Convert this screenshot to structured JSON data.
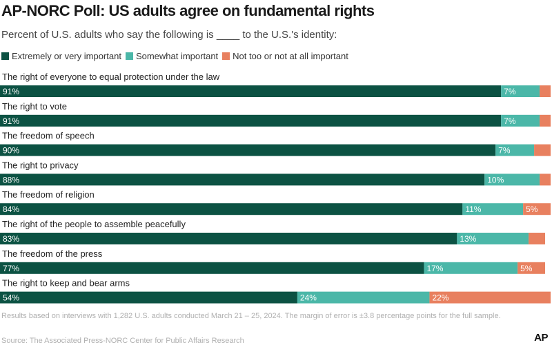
{
  "header": {
    "title": "AP-NORC Poll: US adults agree on fundamental rights",
    "subtitle": "Percent of U.S. adults who say the following is ____ to the U.S.'s identity:"
  },
  "colors": {
    "extremely": "#0c5243",
    "somewhat": "#4bb7a8",
    "not": "#e8805f"
  },
  "chart_data": {
    "type": "bar",
    "orientation": "horizontal",
    "stacked": true,
    "legend_position": "top-left",
    "grid": false,
    "xlim": [
      0,
      100
    ],
    "categories": [
      "The right of everyone to equal protection under the law",
      "The right to vote",
      "The freedom of speech",
      "The right to privacy",
      "The freedom of religion",
      "The right of the people to assemble peacefully",
      "The freedom of the press",
      "The right to keep and bear arms"
    ],
    "series": [
      {
        "name": "Extremely or very important",
        "values": [
          91,
          91,
          90,
          88,
          84,
          83,
          77,
          54
        ],
        "labels": [
          "91%",
          "91%",
          "90%",
          "88%",
          "84%",
          "83%",
          "77%",
          "54%"
        ]
      },
      {
        "name": "Somewhat important",
        "values": [
          7,
          7,
          7,
          10,
          11,
          13,
          17,
          24
        ],
        "labels": [
          "7%",
          "7%",
          "7%",
          "10%",
          "11%",
          "13%",
          "17%",
          "24%"
        ]
      },
      {
        "name": "Not too or not at all important",
        "values": [
          2,
          2,
          3,
          2,
          5,
          3,
          5,
          22
        ],
        "labels": [
          "",
          "",
          "",
          "",
          "5%",
          "",
          "5%",
          "22%"
        ]
      }
    ]
  },
  "footer": {
    "note": "Results based on interviews with 1,282 U.S. adults conducted March 21 – 25, 2024. The margin of error is ±3.8 percentage points for the full sample.",
    "source": "Source: The Associated Press-NORC Center for Public Affairs Research",
    "logo_text": "AP"
  }
}
